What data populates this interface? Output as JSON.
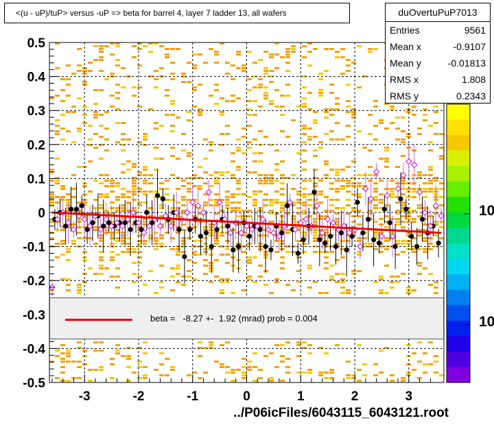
{
  "title": "<(u - uP)/tuP> versus  -uP => beta for barrel 4, layer 7 ladder 13, all wafers",
  "stats": {
    "name": "duOvertuPuP7013",
    "rows": [
      {
        "label": "Entries",
        "value": "9561"
      },
      {
        "label": "Mean x",
        "value": "-0.9107"
      },
      {
        "label": "Mean y",
        "value": "-0.01813"
      },
      {
        "label": "RMS x",
        "value": "1.808"
      },
      {
        "label": "RMS y",
        "value": "0.2343"
      }
    ]
  },
  "fit_legend": "beta =   -8.27 +-  1.92 (mrad) prob = 0.004",
  "colors": {
    "fit": "#ee0000",
    "points_filled": "#000000",
    "points_open": "#cc00cc",
    "hist_orange": "#f5a000",
    "hist_yellow": "#f7c800"
  },
  "z_axis_labels": [
    "10",
    "10"
  ],
  "chart_data": {
    "type": "scatter",
    "title": "<(u - uP)/tuP> versus  -uP => beta for barrel 4, layer 7 ladder 13, all wafers",
    "xlabel": "../P06icFiles/6043115_6043121.root",
    "ylabel": "",
    "xlim": [
      -3.65,
      3.65
    ],
    "ylim": [
      -0.5,
      0.5
    ],
    "x_ticks": [
      -3,
      -2,
      -1,
      0,
      1,
      2,
      3
    ],
    "x_tick_labels": [
      "-3",
      "-2",
      "-1",
      "0",
      "1",
      "2",
      "3"
    ],
    "y_ticks": [
      -0.5,
      -0.4,
      -0.3,
      -0.2,
      -0.1,
      0,
      0.1,
      0.2,
      0.3,
      0.4,
      0.5
    ],
    "y_tick_labels": [
      "-0.5",
      "-0.4",
      "-0.3",
      "-0.2",
      "-0.1",
      "0",
      "0.1",
      "0.2",
      "0.3",
      "0.4",
      "0.5"
    ],
    "grid": true,
    "fit_line": {
      "x": [
        -3.6,
        3.6
      ],
      "y": [
        0.0,
        -0.06
      ]
    },
    "series": [
      {
        "name": "",
        "marker": "filled-circle",
        "points": [
          [
            -3.55,
            -0.02
          ],
          [
            -3.45,
            0.0
          ],
          [
            -3.35,
            -0.04
          ],
          [
            -3.25,
            0.01
          ],
          [
            -3.15,
            0.01
          ],
          [
            -3.05,
            0.02
          ],
          [
            -2.95,
            -0.05
          ],
          [
            -2.85,
            -0.03
          ],
          [
            -2.75,
            -0.01
          ],
          [
            -2.65,
            -0.04
          ],
          [
            -2.55,
            -0.03
          ],
          [
            -2.45,
            -0.04
          ],
          [
            -2.35,
            -0.03
          ],
          [
            -2.25,
            -0.03
          ],
          [
            -2.15,
            -0.05
          ],
          [
            -2.05,
            -0.03
          ],
          [
            -1.95,
            -0.05
          ],
          [
            -1.85,
            0.0
          ],
          [
            -1.75,
            -0.03
          ],
          [
            -1.65,
            0.05
          ],
          [
            -1.55,
            0.04
          ],
          [
            -1.45,
            -0.02
          ],
          [
            -1.35,
            0.0
          ],
          [
            -1.25,
            -0.05
          ],
          [
            -1.15,
            -0.13
          ],
          [
            -1.05,
            -0.05
          ],
          [
            -0.95,
            -0.02
          ],
          [
            -0.85,
            -0.07
          ],
          [
            -0.75,
            -0.06
          ],
          [
            -0.65,
            -0.1
          ],
          [
            -0.55,
            -0.05
          ],
          [
            -0.45,
            -0.02
          ],
          [
            -0.35,
            -0.04
          ],
          [
            -0.25,
            -0.11
          ],
          [
            -0.15,
            -0.1
          ],
          [
            -0.05,
            -0.03
          ],
          [
            0.05,
            -0.07
          ],
          [
            0.15,
            -0.04
          ],
          [
            0.25,
            -0.05
          ],
          [
            0.35,
            -0.1
          ],
          [
            0.45,
            -0.11
          ],
          [
            0.55,
            -0.04
          ],
          [
            0.65,
            -0.06
          ],
          [
            0.75,
            0.02
          ],
          [
            0.85,
            -0.05
          ],
          [
            0.95,
            -0.12
          ],
          [
            1.05,
            -0.08
          ],
          [
            1.15,
            -0.04
          ],
          [
            1.25,
            0.06
          ],
          [
            1.35,
            -0.08
          ],
          [
            1.45,
            -0.09
          ],
          [
            1.55,
            -0.07
          ],
          [
            1.65,
            -0.1
          ],
          [
            1.75,
            -0.06
          ],
          [
            1.85,
            -0.11
          ],
          [
            1.95,
            -0.07
          ],
          [
            2.05,
            0.03
          ],
          [
            2.15,
            -0.06
          ],
          [
            2.25,
            -0.02
          ],
          [
            2.35,
            -0.08
          ],
          [
            2.45,
            -0.09
          ],
          [
            2.55,
            0.01
          ],
          [
            2.65,
            -0.03
          ],
          [
            2.75,
            -0.1
          ],
          [
            2.85,
            0.04
          ],
          [
            2.95,
            0.01
          ],
          [
            3.05,
            -0.07
          ],
          [
            3.15,
            -0.1
          ],
          [
            3.25,
            -0.02
          ],
          [
            3.35,
            -0.06
          ],
          [
            3.45,
            -0.04
          ],
          [
            3.55,
            -0.09
          ]
        ]
      },
      {
        "name": "",
        "marker": "open-diamond",
        "points": [
          [
            -3.6,
            -0.22
          ],
          [
            -3.5,
            -0.02
          ],
          [
            -3.4,
            0.0
          ],
          [
            -3.3,
            -0.03
          ],
          [
            -3.2,
            -0.05
          ],
          [
            -3.1,
            -0.01
          ],
          [
            -3.0,
            -0.02
          ],
          [
            -2.9,
            -0.04
          ],
          [
            -2.8,
            -0.01
          ],
          [
            -2.7,
            -0.05
          ],
          [
            -2.6,
            -0.02
          ],
          [
            -2.5,
            -0.04
          ],
          [
            -2.4,
            -0.03
          ],
          [
            -2.3,
            -0.04
          ],
          [
            -2.2,
            -0.02
          ],
          [
            -2.1,
            0.0
          ],
          [
            -2.0,
            -0.03
          ],
          [
            -1.9,
            -0.06
          ],
          [
            -1.8,
            -0.04
          ],
          [
            -1.7,
            -0.02
          ],
          [
            -1.6,
            -0.04
          ],
          [
            -1.5,
            -0.01
          ],
          [
            -1.4,
            -0.04
          ],
          [
            -1.3,
            0.0
          ],
          [
            -1.2,
            -0.02
          ],
          [
            -1.1,
            0.0
          ],
          [
            -1.0,
            0.03
          ],
          [
            -0.9,
            0.02
          ],
          [
            -0.8,
            0.0
          ],
          [
            -0.7,
            0.06
          ],
          [
            -0.6,
            -0.03
          ],
          [
            -0.5,
            0.03
          ],
          [
            -0.4,
            -0.02
          ],
          [
            -0.3,
            -0.06
          ],
          [
            -0.2,
            -0.03
          ],
          [
            -0.1,
            -0.06
          ],
          [
            0.0,
            -0.04
          ],
          [
            0.1,
            -0.05
          ],
          [
            0.2,
            -0.04
          ],
          [
            0.3,
            -0.02
          ],
          [
            0.4,
            -0.05
          ],
          [
            0.5,
            -0.06
          ],
          [
            0.6,
            -0.07
          ],
          [
            0.7,
            -0.04
          ],
          [
            0.8,
            0.03
          ],
          [
            0.9,
            -0.05
          ],
          [
            1.0,
            -0.03
          ],
          [
            1.1,
            -0.02
          ],
          [
            1.2,
            -0.04
          ],
          [
            1.3,
            0.02
          ],
          [
            1.4,
            -0.06
          ],
          [
            1.5,
            -0.02
          ],
          [
            1.6,
            -0.03
          ],
          [
            1.7,
            -0.05
          ],
          [
            1.8,
            -0.04
          ],
          [
            1.9,
            -0.06
          ],
          [
            2.0,
            -0.05
          ],
          [
            2.1,
            -0.1
          ],
          [
            2.2,
            0.07
          ],
          [
            2.3,
            0.04
          ],
          [
            2.4,
            0.12
          ],
          [
            2.5,
            -0.07
          ],
          [
            2.6,
            0.05
          ],
          [
            2.7,
            -0.07
          ],
          [
            2.8,
            0.07
          ],
          [
            2.9,
            0.11
          ],
          [
            3.0,
            0.15
          ],
          [
            3.1,
            0.14
          ],
          [
            3.2,
            0.06
          ],
          [
            3.3,
            0.0
          ],
          [
            3.4,
            -0.04
          ],
          [
            3.5,
            0.02
          ],
          [
            3.6,
            -0.01
          ]
        ]
      }
    ]
  }
}
